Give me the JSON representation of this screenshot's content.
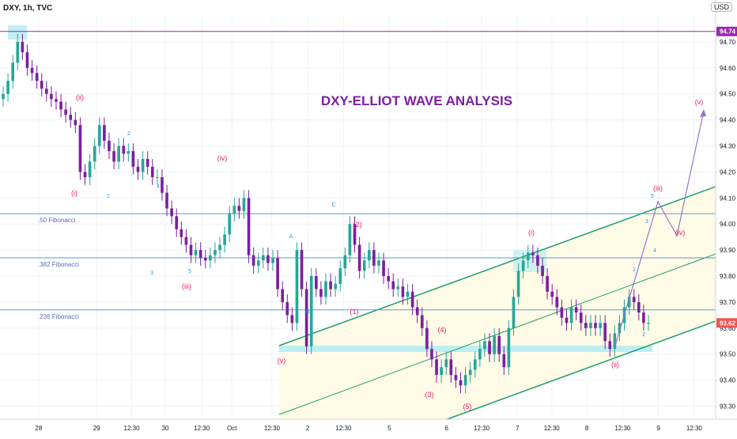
{
  "header": {
    "symbol_info": "DXY, 1h, TVC",
    "currency": "USD"
  },
  "title": "DXY-ELLIOT WAVE ANALYSIS",
  "chart_data": {
    "type": "candlestick",
    "symbol": "DXY",
    "interval": "1h",
    "source": "TVC",
    "ylim": [
      93.25,
      94.8
    ],
    "xlim": [
      0,
      100
    ],
    "y_ticks": [
      "94.70",
      "94.60",
      "94.50",
      "94.40",
      "94.30",
      "94.20",
      "94.10",
      "94.00",
      "93.90",
      "93.80",
      "93.70",
      "93.60",
      "93.50",
      "93.40",
      "93.30"
    ],
    "y_tick_values": [
      94.7,
      94.6,
      94.5,
      94.4,
      94.3,
      94.2,
      94.1,
      94.0,
      93.9,
      93.8,
      93.7,
      93.6,
      93.5,
      93.4,
      93.3
    ],
    "x_tick_labels": [
      "28",
      "29",
      "12:30",
      "30",
      "12:30",
      "Oct",
      "12:30",
      "2",
      "12:30",
      "5",
      "6",
      "12:30",
      "7",
      "12:30",
      "8",
      "12:30",
      "9",
      "12:30"
    ],
    "x_tick_positions": [
      5.4,
      13.5,
      18.4,
      23.1,
      28.2,
      32.4,
      38.0,
      43.0,
      48.0,
      54.4,
      62.4,
      67.3,
      72.3,
      77.1,
      82.0,
      87.0,
      92.0,
      97.0
    ],
    "price_labels": [
      {
        "text": "94.74",
        "value": 94.74,
        "color": "#9c27b0"
      },
      {
        "text": "93.62",
        "value": 93.62,
        "color": "#ef5350"
      }
    ],
    "horizontal_levels": [
      {
        "name": "resistance",
        "value": 94.74,
        "color": "#9c27b0"
      },
      {
        "name": ".50 Fibonacci",
        "value": 94.04,
        "color": "#5b9bd5"
      },
      {
        "name": ".382 Fibonacci",
        "value": 93.87,
        "color": "#5b9bd5"
      },
      {
        "name": ".236 Fibonacci",
        "value": 93.67,
        "color": "#5b9bd5"
      }
    ],
    "fib_labels": [
      ".50 Fibonacci",
      ".382 Fibonacci",
      ".236 Fibonacci"
    ],
    "candles_close": [
      94.5,
      94.55,
      94.62,
      94.7,
      94.66,
      94.6,
      94.58,
      94.55,
      94.52,
      94.5,
      94.48,
      94.47,
      94.44,
      94.42,
      94.4,
      94.38,
      94.2,
      94.18,
      94.24,
      94.3,
      94.38,
      94.32,
      94.28,
      94.24,
      94.3,
      94.27,
      94.28,
      94.22,
      94.2,
      94.25,
      94.22,
      94.18,
      94.18,
      94.12,
      94.06,
      94.03,
      93.98,
      93.95,
      93.92,
      93.88,
      93.9,
      93.87,
      93.86,
      93.88,
      93.9,
      93.92,
      93.96,
      94.04,
      94.07,
      94.05,
      94.1,
      93.88,
      93.84,
      93.86,
      93.88,
      93.85,
      93.87,
      93.75,
      93.7,
      93.65,
      93.62,
      93.9,
      93.75,
      93.53,
      93.8,
      93.75,
      93.72,
      93.78,
      93.75,
      93.77,
      93.83,
      93.88,
      94.0,
      93.92,
      93.82,
      93.86,
      93.9,
      93.84,
      93.86,
      93.8,
      93.78,
      93.75,
      93.76,
      93.72,
      93.74,
      93.68,
      93.65,
      93.6,
      93.52,
      93.48,
      93.42,
      93.45,
      93.48,
      93.42,
      93.4,
      93.38,
      93.42,
      93.44,
      93.48,
      93.52,
      93.55,
      93.5,
      93.57,
      93.5,
      93.45,
      93.6,
      93.72,
      93.82,
      93.86,
      93.89,
      93.88,
      93.84,
      93.8,
      93.74,
      93.72,
      93.68,
      93.64,
      93.62,
      93.68,
      93.66,
      93.62,
      93.6,
      93.62,
      93.6,
      93.62,
      93.55,
      93.52,
      93.58,
      93.62,
      93.68,
      93.72,
      93.7,
      93.66,
      93.62,
      93.62
    ],
    "wave_labels": [
      {
        "text": "(i)",
        "color": "#e91e63"
      },
      {
        "text": "(ii)",
        "color": "#e91e63"
      },
      {
        "text": "(iii)",
        "color": "#e91e63"
      },
      {
        "text": "(iv)",
        "color": "#e91e63"
      },
      {
        "text": "(v)",
        "color": "#e91e63"
      },
      {
        "text": "(i)",
        "color": "#e91e63"
      },
      {
        "text": "(ii)",
        "color": "#e91e63"
      },
      {
        "text": "(iii)",
        "color": "#e91e63"
      },
      {
        "text": "(iv)",
        "color": "#e91e63"
      },
      {
        "text": "(v)",
        "color": "#e91e63"
      },
      {
        "text": "1",
        "color": "#2196f3"
      },
      {
        "text": "2",
        "color": "#2196f3"
      },
      {
        "text": "3",
        "color": "#2196f3"
      },
      {
        "text": "4",
        "color": "#2196f3"
      },
      {
        "text": "5",
        "color": "#2196f3"
      },
      {
        "text": "A",
        "color": "#2196f3"
      },
      {
        "text": "B",
        "color": "#2196f3"
      },
      {
        "text": "C",
        "color": "#2196f3"
      },
      {
        "text": "(1)",
        "color": "#e91e63"
      },
      {
        "text": "(2)",
        "color": "#e91e63"
      },
      {
        "text": "(3)",
        "color": "#e91e63"
      },
      {
        "text": "(4)",
        "color": "#e91e63"
      },
      {
        "text": "(5)",
        "color": "#e91e63"
      },
      {
        "text": "1",
        "color": "#2196f3"
      },
      {
        "text": "2",
        "color": "#2196f3"
      },
      {
        "text": "3",
        "color": "#2196f3"
      },
      {
        "text": "4",
        "color": "#2196f3"
      },
      {
        "text": "5",
        "color": "#2196f3"
      },
      {
        "text": "3",
        "color": "#2196f3"
      },
      {
        "text": "4",
        "color": "#2196f3"
      },
      {
        "text": "5",
        "color": "#2196f3"
      }
    ],
    "colors": {
      "up": "#26a69a",
      "down": "#7b1fa2",
      "title": "#7b1fa2",
      "channel": "#1e9e6e",
      "fib": "#5b9bd5",
      "projection": "#9575cd",
      "channel_fill": "#fffbe6",
      "zone": "#b2ebf2"
    }
  }
}
